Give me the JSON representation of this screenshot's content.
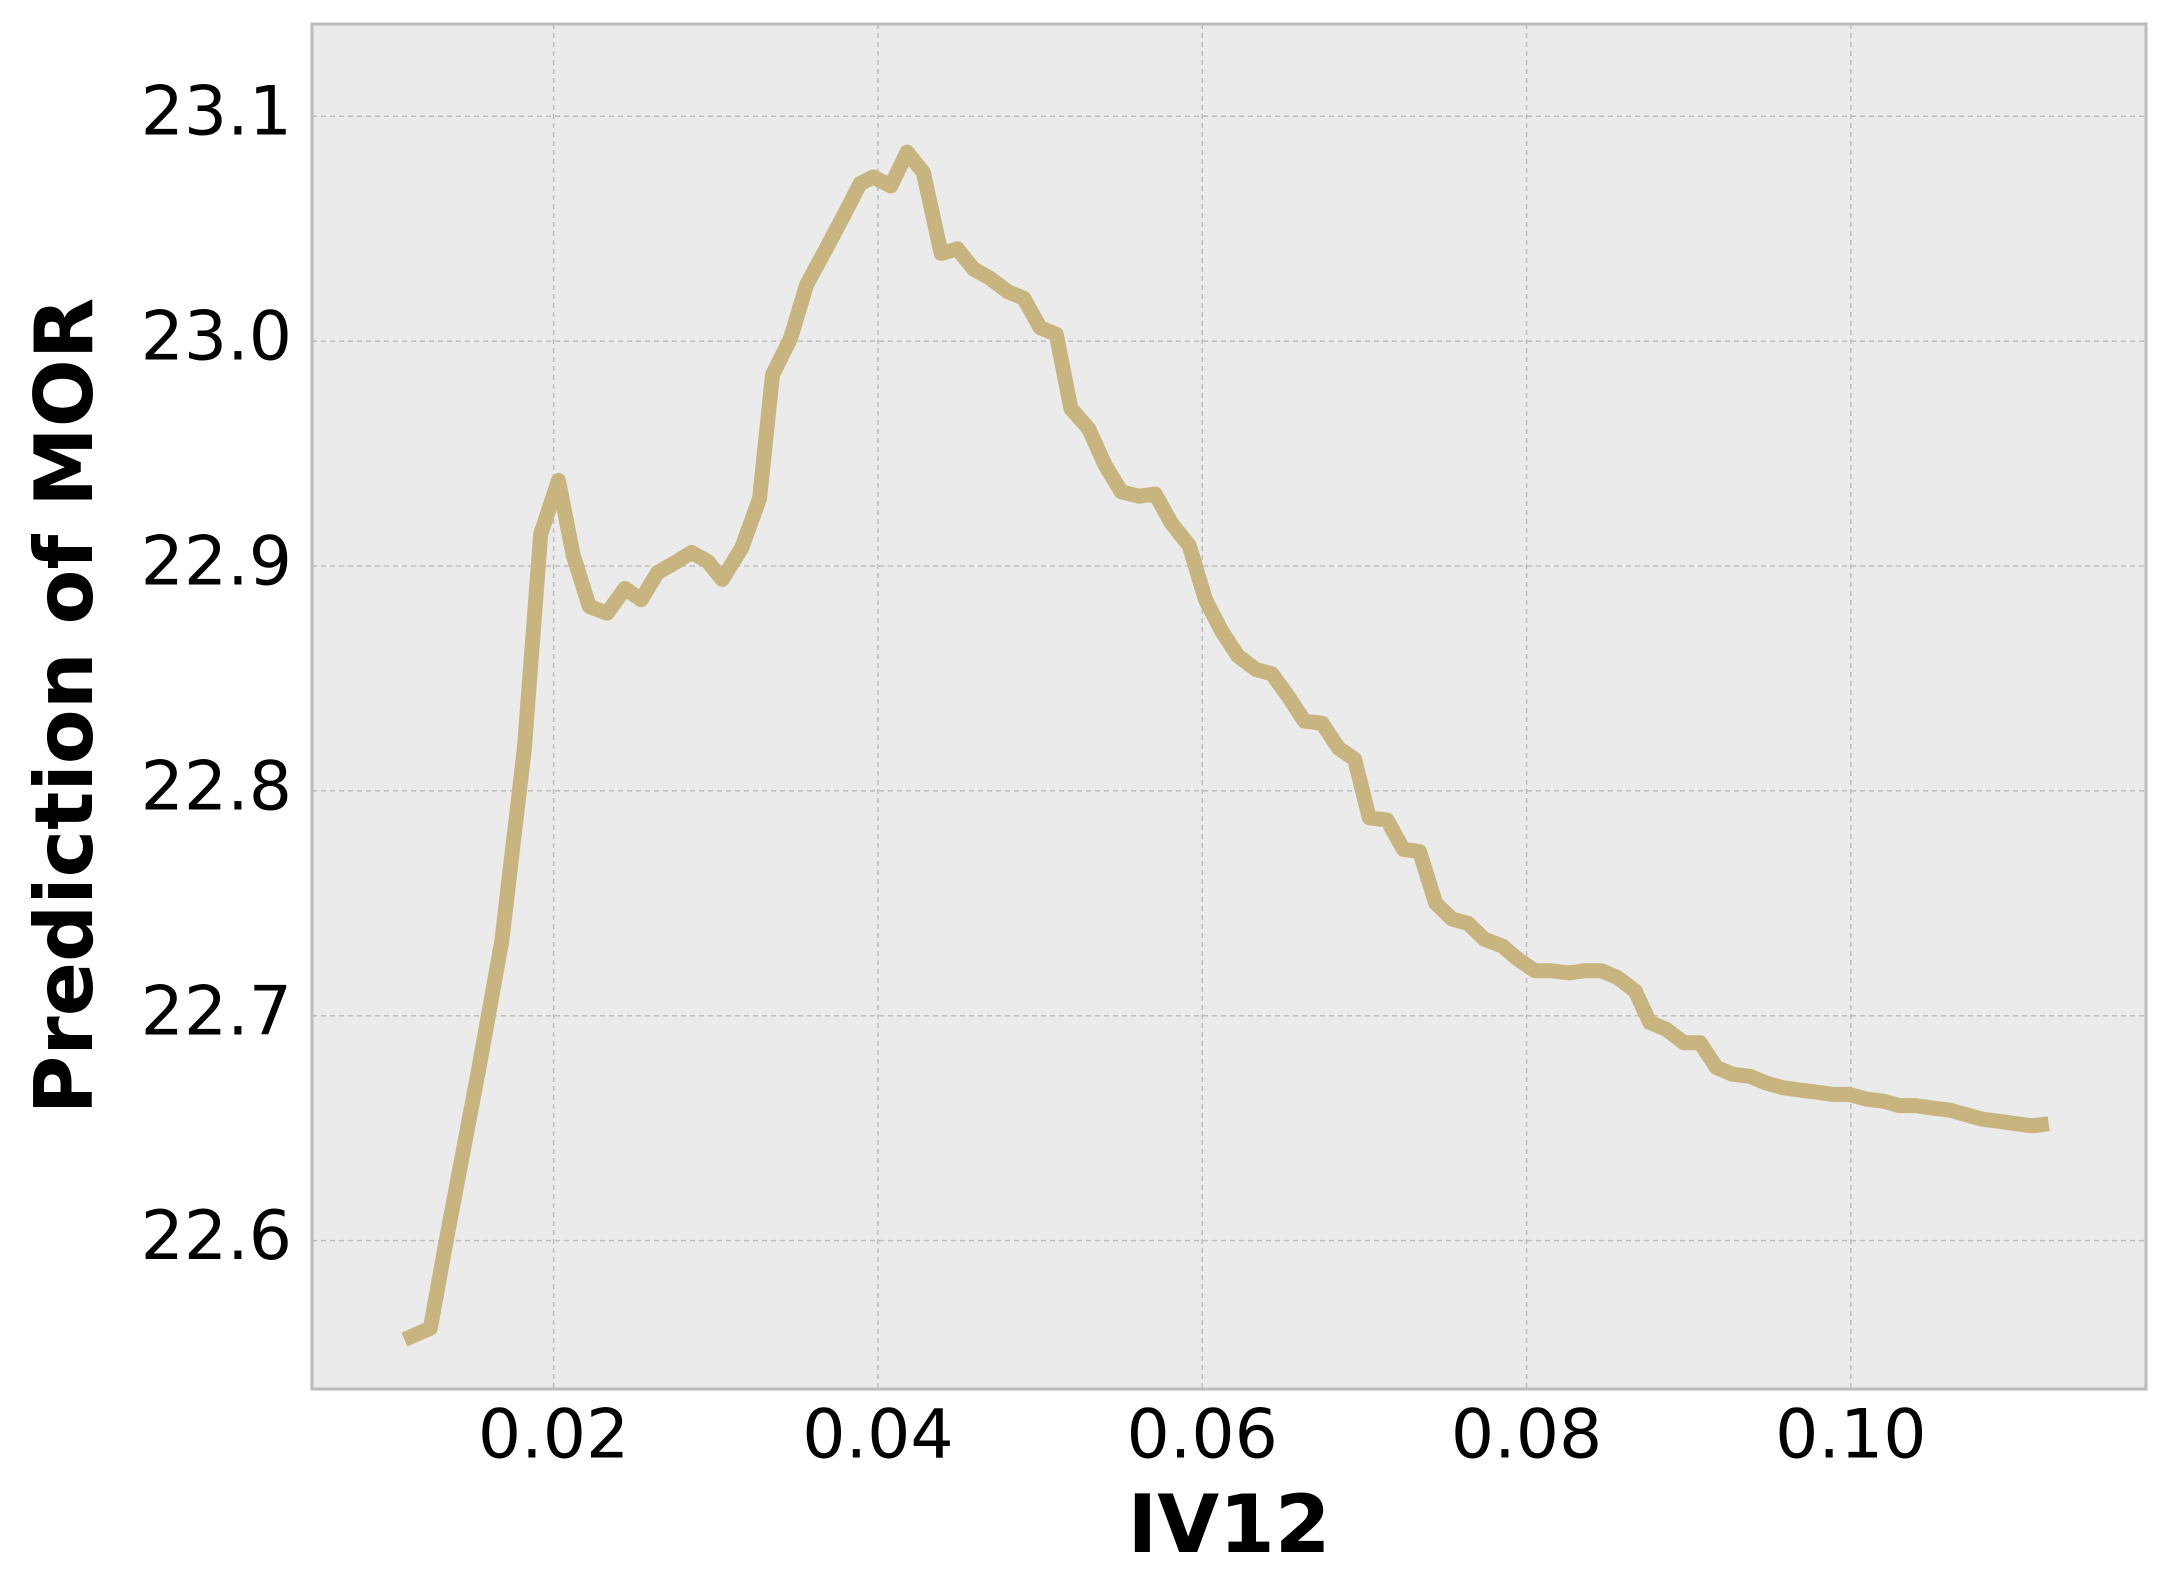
{
  "chart_data": {
    "type": "line",
    "x_label": "IV12",
    "y_label": "Prediction of MOR",
    "x": [
      0.0108,
      0.0124,
      0.0133,
      0.0154,
      0.0168,
      0.0182,
      0.0192,
      0.0203,
      0.0212,
      0.0222,
      0.0233,
      0.0244,
      0.0254,
      0.0264,
      0.0276,
      0.0285,
      0.0295,
      0.0304,
      0.0316,
      0.0327,
      0.0335,
      0.0346,
      0.0356,
      0.0368,
      0.0379,
      0.0389,
      0.0397,
      0.0408,
      0.0418,
      0.0428,
      0.0439,
      0.0449,
      0.0459,
      0.0469,
      0.048,
      0.049,
      0.05,
      0.051,
      0.0519,
      0.053,
      0.054,
      0.055,
      0.0561,
      0.0571,
      0.0581,
      0.0592,
      0.0602,
      0.0612,
      0.0622,
      0.0633,
      0.0643,
      0.0653,
      0.0663,
      0.0674,
      0.0684,
      0.0694,
      0.0703,
      0.0714,
      0.0724,
      0.0734,
      0.0744,
      0.0754,
      0.0764,
      0.0774,
      0.0785,
      0.0795,
      0.0805,
      0.0815,
      0.0826,
      0.0836,
      0.0846,
      0.0856,
      0.0867,
      0.0876,
      0.0886,
      0.0897,
      0.0907,
      0.0917,
      0.0927,
      0.0938,
      0.0948,
      0.0958,
      0.0968,
      0.0979,
      0.0989,
      0.0999,
      0.1009,
      0.102,
      0.103,
      0.104,
      0.105,
      0.1061,
      0.1071,
      0.1081,
      0.1092,
      0.1102,
      0.1112,
      0.1122
    ],
    "series": [
      {
        "name": "Prediction of MOR",
        "color": "#c8b47e",
        "values": [
          22.556,
          22.561,
          22.597,
          22.677,
          22.733,
          22.819,
          22.914,
          22.938,
          22.905,
          22.882,
          22.879,
          22.89,
          22.885,
          22.897,
          22.902,
          22.906,
          22.902,
          22.894,
          22.908,
          22.93,
          22.985,
          23.001,
          23.025,
          23.041,
          23.056,
          23.07,
          23.073,
          23.069,
          23.084,
          23.075,
          23.039,
          23.041,
          23.032,
          23.028,
          23.022,
          23.019,
          23.006,
          23.003,
          22.97,
          22.961,
          22.945,
          22.933,
          22.931,
          22.932,
          22.919,
          22.909,
          22.885,
          22.871,
          22.86,
          22.854,
          22.852,
          22.842,
          22.831,
          22.83,
          22.819,
          22.814,
          22.788,
          22.787,
          22.774,
          22.773,
          22.75,
          22.743,
          22.741,
          22.734,
          22.731,
          22.725,
          22.72,
          22.72,
          22.719,
          22.72,
          22.72,
          22.717,
          22.711,
          22.697,
          22.694,
          22.688,
          22.688,
          22.677,
          22.674,
          22.673,
          22.67,
          22.668,
          22.667,
          22.666,
          22.665,
          22.665,
          22.663,
          22.662,
          22.66,
          22.66,
          22.659,
          22.658,
          22.656,
          22.654,
          22.653,
          22.652,
          22.651,
          22.652
        ]
      }
    ],
    "xlim": [
      0.0051,
      0.1182
    ],
    "ylim": [
      22.534,
      23.141
    ],
    "xticks": [
      0.02,
      0.04,
      0.06,
      0.08,
      {
        "value": 0.1,
        "label": "0.10"
      }
    ],
    "yticks": [
      22.6,
      22.7,
      22.8,
      22.9,
      {
        "value": 23.0,
        "label": "23.0"
      },
      23.1
    ],
    "grid": true
  }
}
